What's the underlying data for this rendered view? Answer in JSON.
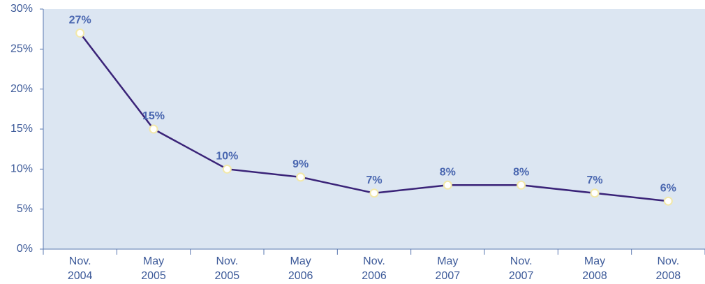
{
  "chart_data": {
    "type": "line",
    "categories": [
      "Nov. 2004",
      "May 2005",
      "Nov. 2005",
      "May 2006",
      "Nov. 2006",
      "May 2007",
      "Nov. 2007",
      "May 2008",
      "Nov. 2008"
    ],
    "series": [
      {
        "color": "#3a2378",
        "values": [
          27,
          15,
          10,
          9,
          7,
          8,
          8,
          7,
          6
        ],
        "value_labels": [
          "27%",
          "15%",
          "10%",
          "9%",
          "7%",
          "8%",
          "8%",
          "7%",
          "6%"
        ]
      }
    ],
    "ylim": [
      0,
      30
    ],
    "yticks": [
      {
        "value": 0,
        "label": "0%"
      },
      {
        "value": 5,
        "label": "5%"
      },
      {
        "value": 10,
        "label": "10%"
      },
      {
        "value": 15,
        "label": "15%"
      },
      {
        "value": 20,
        "label": "20%"
      },
      {
        "value": 25,
        "label": "25%"
      },
      {
        "value": 30,
        "label": "30%"
      }
    ]
  }
}
